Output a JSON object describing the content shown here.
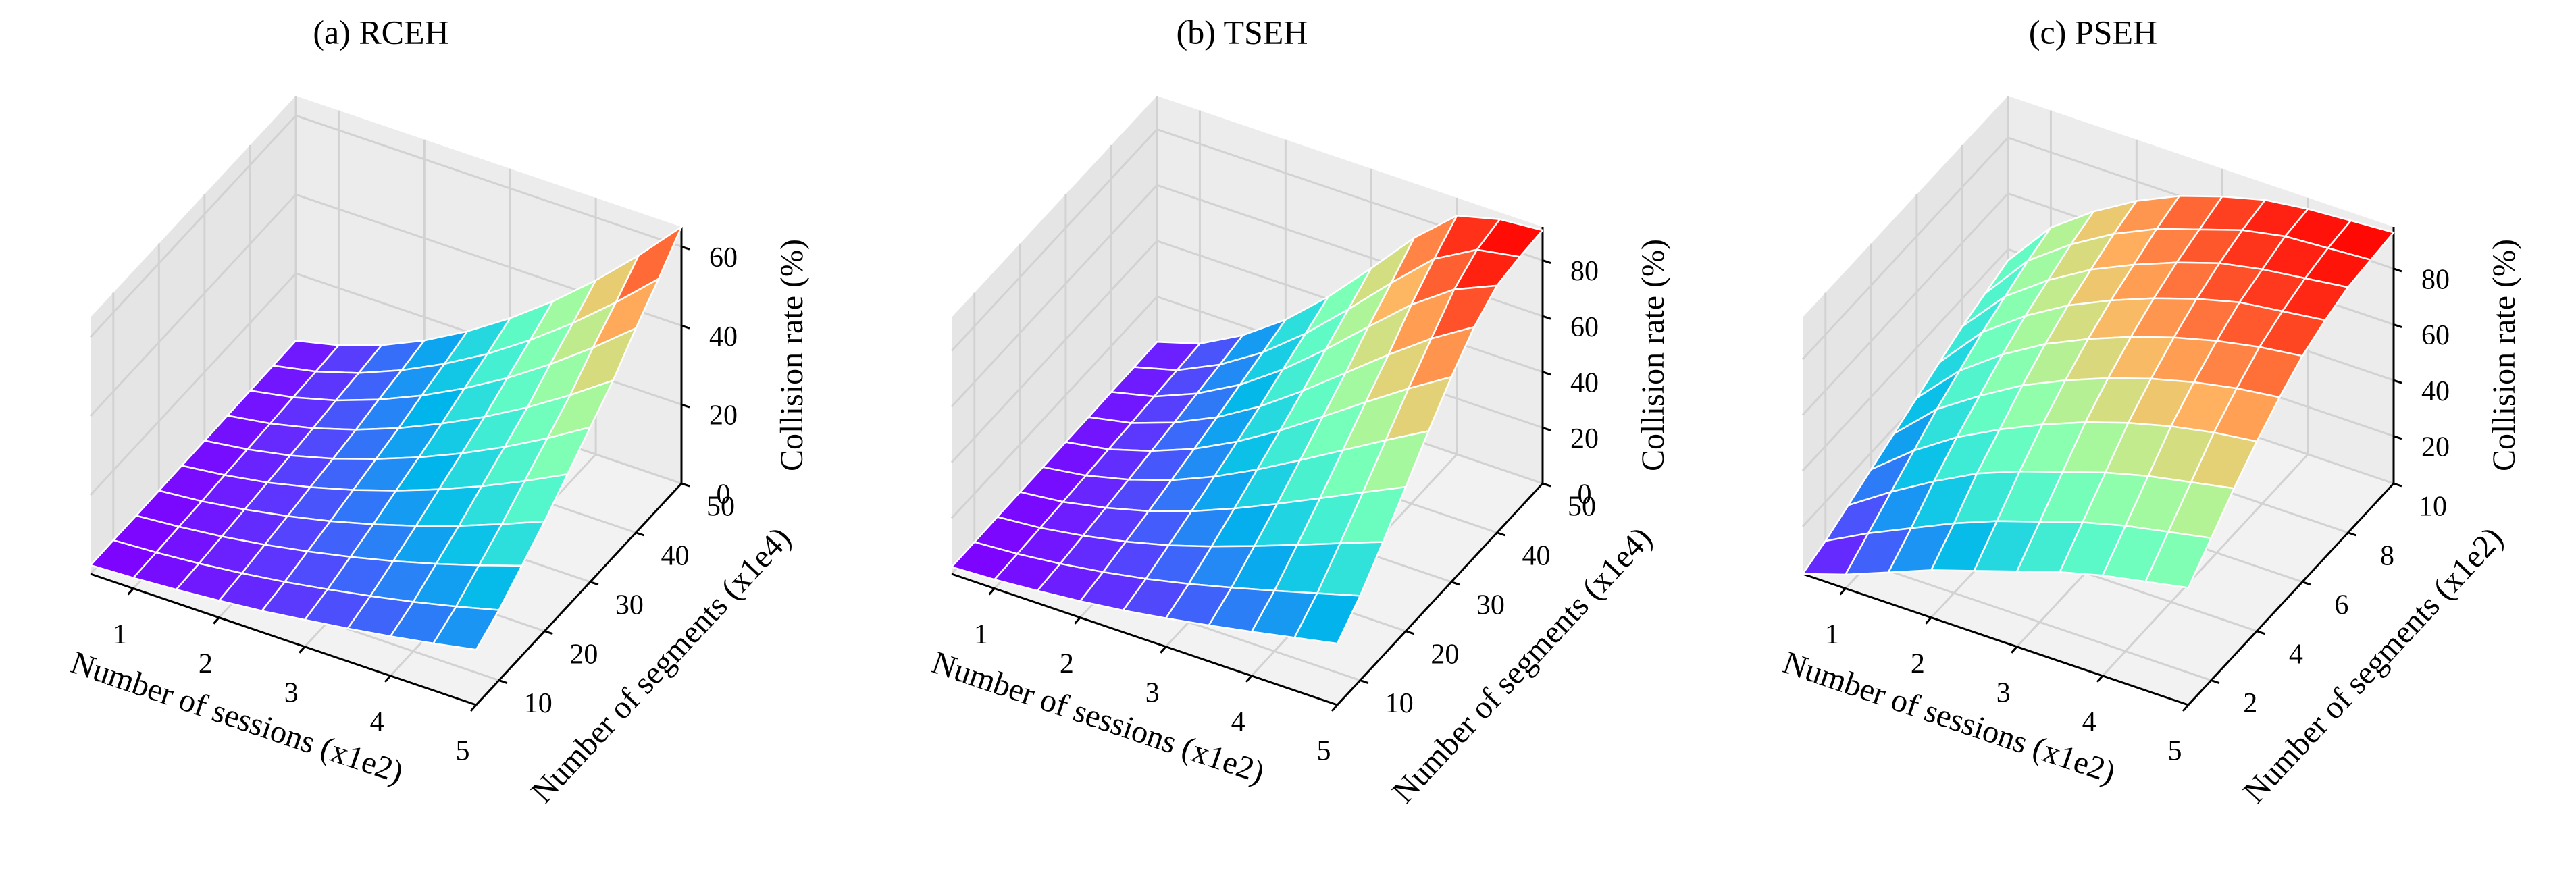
{
  "chart_data": [
    {
      "type": "surface",
      "title": "(a) RCEH",
      "xlabel": "Number of sessions (x1e2)",
      "ylabel": "Number of segments (x1e4)",
      "zlabel": "Collision rate (%)",
      "colormap": "rainbow",
      "edgecolor": "#ffffff",
      "x": [
        0.5,
        1,
        1.5,
        2,
        2.5,
        3,
        3.5,
        4,
        4.5,
        5
      ],
      "y": [
        5,
        10,
        15,
        20,
        25,
        30,
        35,
        40,
        45,
        50
      ],
      "z": [
        [
          2.2,
          2.3,
          2.3,
          2.4,
          2.5,
          2.6,
          2.7,
          2.8,
          2.9,
          3.0
        ],
        [
          2.7,
          2.9,
          3.2,
          3.4,
          3.8,
          4.1,
          4.4,
          4.8,
          5.1,
          5.5
        ],
        [
          3.4,
          3.8,
          4.4,
          5.0,
          5.6,
          6.2,
          6.9,
          7.7,
          8.4,
          9.2
        ],
        [
          4.3,
          5.0,
          6.0,
          7.0,
          8.1,
          9.1,
          10.2,
          11.6,
          12.8,
          14.1
        ],
        [
          5.4,
          6.5,
          8.0,
          9.4,
          11.1,
          12.7,
          14.3,
          16.3,
          18.1,
          20.1
        ],
        [
          6.8,
          8.3,
          10.3,
          12.3,
          14.6,
          16.8,
          19.1,
          21.8,
          24.3,
          27.1
        ],
        [
          8.3,
          10.3,
          12.9,
          15.6,
          18.6,
          21.5,
          24.5,
          28.1,
          31.5,
          35.1
        ],
        [
          10.0,
          12.5,
          15.9,
          19.3,
          23.1,
          26.8,
          30.6,
          35.3,
          39.5,
          44.1
        ],
        [
          11.9,
          15.0,
          19.2,
          23.4,
          28.1,
          32.7,
          37.4,
          43.2,
          48.4,
          54.1
        ],
        [
          14.0,
          17.8,
          22.8,
          27.8,
          33.5,
          39.2,
          44.8,
          51.8,
          58.1,
          65.0
        ]
      ],
      "xlim": [
        0.5,
        5
      ],
      "ylim": [
        5,
        50
      ],
      "zlim": [
        0,
        65
      ],
      "xticks": [
        1,
        2,
        3,
        4,
        5
      ],
      "yticks": [
        10,
        20,
        30,
        40,
        50
      ],
      "zticks": [
        0,
        20,
        40,
        60
      ]
    },
    {
      "type": "surface",
      "title": "(b) TSEH",
      "xlabel": "Number of sessions (x1e2)",
      "ylabel": "Number of segments (x1e4)",
      "zlabel": "Collision rate (%)",
      "colormap": "rainbow",
      "edgecolor": "#ffffff",
      "x": [
        0.5,
        1,
        1.5,
        2,
        2.5,
        3,
        3.5,
        4,
        4.5,
        5
      ],
      "y": [
        5,
        10,
        15,
        20,
        25,
        30,
        35,
        40,
        45,
        50
      ],
      "z": [
        [
          2.5,
          2.6,
          2.8,
          2.9,
          3.0,
          3.2,
          3.3,
          3.5,
          3.6,
          3.8
        ],
        [
          3.2,
          3.6,
          4.1,
          4.6,
          5.2,
          5.8,
          6.4,
          7.1,
          7.7,
          8.4
        ],
        [
          4.4,
          5.3,
          6.5,
          7.7,
          9.0,
          10.4,
          11.8,
          13.4,
          14.9,
          16.6
        ],
        [
          5.9,
          7.5,
          9.6,
          11.7,
          14.0,
          16.4,
          18.9,
          21.7,
          24.5,
          27.4
        ],
        [
          7.8,
          10.3,
          13.5,
          16.9,
          20.5,
          24.2,
          28.0,
          32.4,
          36.5,
          40.9
        ],
        [
          10.2,
          13.7,
          18.3,
          23.1,
          28.2,
          33.4,
          38.8,
          44.8,
          50.4,
          56.3
        ],
        [
          12.9,
          17.6,
          23.7,
          30.0,
          36.8,
          43.6,
          50.5,
          58.2,
          65.1,
          72.4
        ],
        [
          15.8,
          21.7,
          29.3,
          37.2,
          45.6,
          54.0,
          62.2,
          71.3,
          78.9,
          85.6
        ],
        [
          18.9,
          26.0,
          35.1,
          44.5,
          54.4,
          64.1,
          73.2,
          82.0,
          87.4,
          89.5
        ],
        [
          22.0,
          30.3,
          40.8,
          51.7,
          62.9,
          73.5,
          82.6,
          88.6,
          90.1,
          90.8
        ]
      ],
      "xlim": [
        0.5,
        5
      ],
      "ylim": [
        5,
        50
      ],
      "zlim": [
        0,
        92
      ],
      "xticks": [
        1,
        2,
        3,
        4,
        5
      ],
      "yticks": [
        10,
        20,
        30,
        40,
        50
      ],
      "zticks": [
        0,
        20,
        40,
        60,
        80
      ]
    },
    {
      "type": "surface",
      "title": "(c) PSEH",
      "xlabel": "Number of sessions (x1e2)",
      "ylabel": "Number of segments (x1e2)",
      "zlabel": "Collision rate (%)",
      "colormap": "rainbow",
      "edgecolor": "#ffffff",
      "x": [
        0.5,
        1,
        1.5,
        2,
        2.5,
        3,
        3.5,
        4,
        4.5,
        5
      ],
      "y": [
        1,
        2,
        3,
        4,
        5,
        6,
        7,
        8,
        9,
        10
      ],
      "z": [
        [
          3,
          6,
          10,
          14,
          18,
          22,
          26,
          30,
          33,
          36
        ],
        [
          8,
          14,
          20,
          26,
          32,
          37,
          42,
          46,
          50,
          53
        ],
        [
          14,
          21,
          29,
          36,
          42,
          48,
          53,
          57,
          61,
          64
        ],
        [
          20,
          28,
          37,
          44,
          51,
          57,
          62,
          66,
          70,
          73
        ],
        [
          25,
          34,
          43,
          51,
          58,
          64,
          69,
          73,
          77,
          80
        ],
        [
          30,
          39,
          48,
          57,
          64,
          70,
          75,
          79,
          82,
          85
        ],
        [
          35,
          44,
          53,
          62,
          69,
          75,
          80,
          84,
          87,
          89
        ],
        [
          39,
          48,
          57,
          66,
          73,
          79,
          84,
          87,
          90,
          91
        ],
        [
          42,
          51,
          60,
          69,
          76,
          82,
          86,
          89,
          91,
          92
        ],
        [
          45,
          54,
          63,
          71,
          78,
          84,
          88,
          91,
          92,
          93
        ]
      ],
      "xlim": [
        0.5,
        5
      ],
      "ylim": [
        1,
        10
      ],
      "zlim": [
        3,
        95
      ],
      "xticks": [
        1,
        2,
        3,
        4,
        5
      ],
      "yticks": [
        2,
        4,
        6,
        8,
        10
      ],
      "zticks": [
        20,
        40,
        60,
        80
      ]
    }
  ]
}
